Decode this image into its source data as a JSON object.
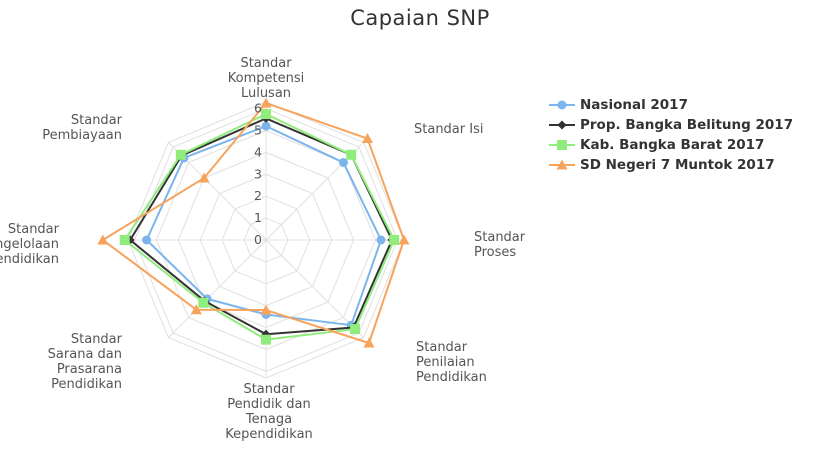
{
  "chart_data": {
    "type": "radar",
    "title": "Capaian SNP",
    "categories": [
      [
        "Standar",
        "Kompetensi",
        "Lulusan"
      ],
      [
        "Standar Isi"
      ],
      [
        "Standar",
        "Proses"
      ],
      [
        "Standar",
        "Penilaian",
        "Pendidikan"
      ],
      [
        "Standar",
        "Pendidik dan",
        "Tenaga",
        "Kependidikan"
      ],
      [
        "Standar",
        "Sarana dan",
        "Prasarana",
        "Pendidikan"
      ],
      [
        "Standar",
        "Pengelolaan",
        "Pendidikan"
      ],
      [
        "Standar",
        "Pembiayaan"
      ]
    ],
    "ticks": [
      "0",
      "1",
      "2",
      "3",
      "4",
      "5",
      "6"
    ],
    "rlim": [
      0,
      6.3
    ],
    "series": [
      {
        "name": "Nasional 2017",
        "color": "#7cb5ec",
        "marker": "circle",
        "values": [
          5.2,
          5.0,
          5.25,
          5.5,
          3.4,
          3.8,
          5.45,
          5.3
        ]
      },
      {
        "name": "Prop. Bangka Belitung 2017",
        "color": "#333333",
        "marker": "diamond",
        "values": [
          5.55,
          5.5,
          5.75,
          5.65,
          4.3,
          3.95,
          6.2,
          5.45
        ]
      },
      {
        "name": "Kab. Bangka Barat 2017",
        "color": "#90ed7d",
        "marker": "square",
        "values": [
          5.75,
          5.5,
          5.85,
          5.75,
          4.55,
          4.05,
          6.45,
          5.5
        ]
      },
      {
        "name": "SD Negeri 7 Muntok 2017",
        "color": "#f7a35c",
        "marker": "triangle",
        "values": [
          6.25,
          6.55,
          6.3,
          6.65,
          3.2,
          4.5,
          7.45,
          4.0
        ]
      }
    ]
  }
}
